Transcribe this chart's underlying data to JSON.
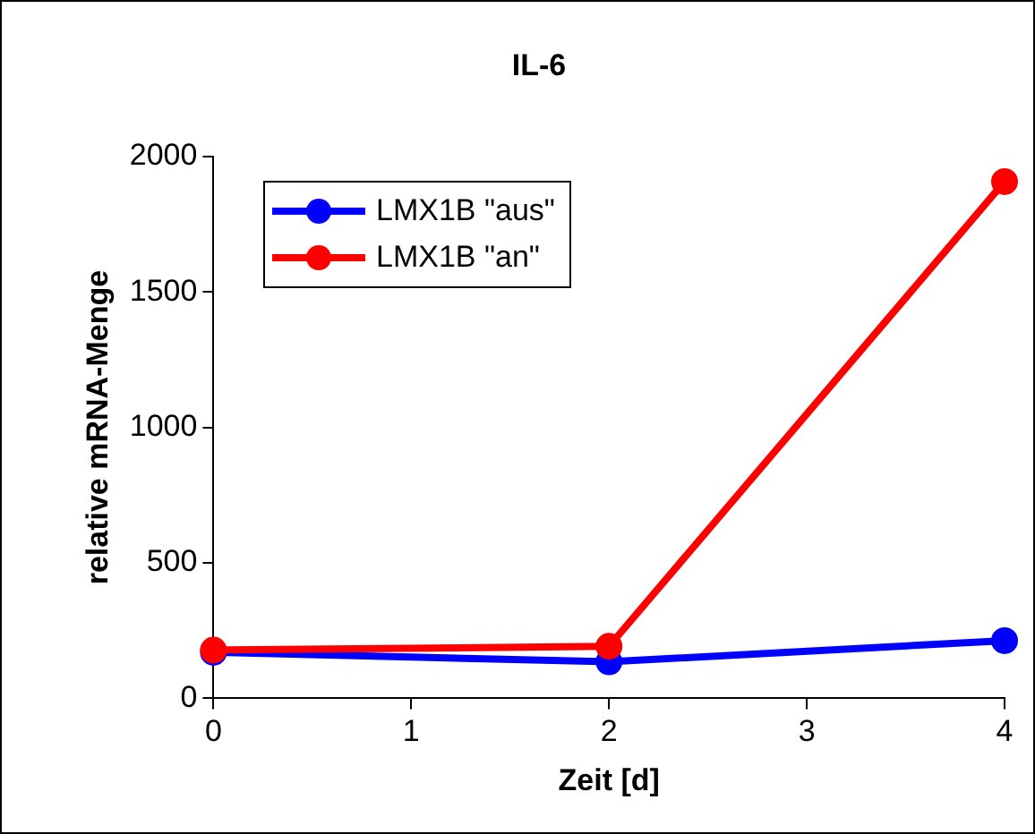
{
  "chart_data": {
    "type": "line",
    "title": "IL-6",
    "xlabel": "Zeit [d]",
    "ylabel": "relative mRNA-Menge",
    "x": [
      0,
      2,
      4
    ],
    "series": [
      {
        "name": "LMX1B \"aus\"",
        "color": "#0000ff",
        "values": [
          170,
          135,
          213
        ]
      },
      {
        "name": "LMX1B \"an\"",
        "color": "#ff0000",
        "values": [
          178,
          192,
          1907
        ]
      }
    ],
    "xlim": [
      0,
      4
    ],
    "xticks": [
      0,
      1,
      2,
      3,
      4
    ],
    "ylim": [
      0,
      2000
    ],
    "yticks": [
      0,
      500,
      1000,
      1500,
      2000
    ],
    "grid": false,
    "legend": "top left",
    "marker": "circle",
    "line_style": "solid"
  }
}
